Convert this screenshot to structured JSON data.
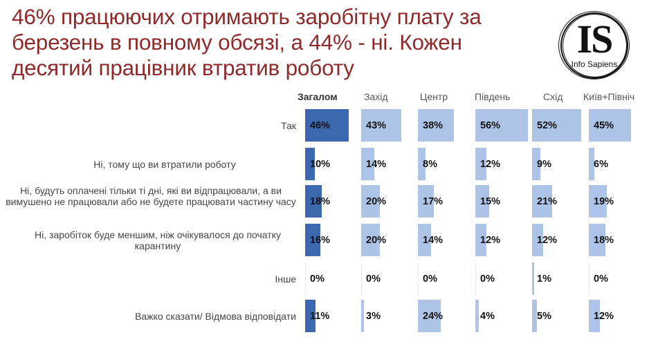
{
  "title": "46% працюючих отримають заробітну плату за березень в повному обсязі, а 44% - ні. Кожен десятий працівник втратив роботу",
  "logo": {
    "mark": "IS",
    "text": "Info Sapiens"
  },
  "colors": {
    "title": "#8f2a2a",
    "total_bar": "#3d68b0",
    "region_bar": "#aec4e6"
  },
  "columns": [
    "Загалом",
    "Захід",
    "Центр",
    "Південь",
    "Схід",
    "Київ+Північ"
  ],
  "rows": [
    {
      "label": "Так",
      "values": [
        "46%",
        "43%",
        "38%",
        "56%",
        "52%",
        "45%"
      ]
    },
    {
      "label": "Ні, тому що ви втратили роботу",
      "values": [
        "10%",
        "14%",
        "8%",
        "12%",
        "9%",
        "6%"
      ]
    },
    {
      "label": "Ні, будуть оплачені тільки ті дні, які ви відпрацювали, а ви вимушено не працювали або не будете працювати частину часу",
      "values": [
        "18%",
        "20%",
        "17%",
        "15%",
        "21%",
        "19%"
      ]
    },
    {
      "label": "Ні, заробіток буде меншим, ніж очікувалося до початку карантину",
      "values": [
        "16%",
        "20%",
        "14%",
        "12%",
        "12%",
        "18%"
      ]
    },
    {
      "label": "Інше",
      "values": [
        "0%",
        "0%",
        "0%",
        "0%",
        "1%",
        "0%"
      ]
    },
    {
      "label": "Важко сказати/ Відмова відповідати",
      "values": [
        "11%",
        "3%",
        "24%",
        "4%",
        "5%",
        "12%"
      ]
    }
  ],
  "chart_data": {
    "type": "bar",
    "orientation": "horizontal",
    "title": "46% працюючих отримають заробітну плату за березень в повному обсязі, а 44% - ні. Кожен десятий працівник втратив роботу",
    "categories": [
      "Так",
      "Ні, тому що ви втратили роботу",
      "Ні, будуть оплачені тільки ті дні, які ви відпрацювали, а ви вимушено не працювали або не будете працювати частину часу",
      "Ні, заробіток буде меншим, ніж очікувалося до початку карантину",
      "Інше",
      "Важко сказати/ Відмова відповідати"
    ],
    "series": [
      {
        "name": "Загалом",
        "values": [
          46,
          10,
          18,
          16,
          0,
          11
        ]
      },
      {
        "name": "Захід",
        "values": [
          43,
          14,
          20,
          20,
          0,
          3
        ]
      },
      {
        "name": "Центр",
        "values": [
          38,
          8,
          17,
          14,
          0,
          24
        ]
      },
      {
        "name": "Південь",
        "values": [
          56,
          12,
          15,
          12,
          0,
          4
        ]
      },
      {
        "name": "Схід",
        "values": [
          52,
          9,
          21,
          12,
          1,
          5
        ]
      },
      {
        "name": "Київ+Північ",
        "values": [
          45,
          6,
          19,
          18,
          0,
          12
        ]
      }
    ],
    "unit": "%",
    "xlabel": "",
    "ylabel": "",
    "grid": false,
    "legend": "column headers"
  }
}
